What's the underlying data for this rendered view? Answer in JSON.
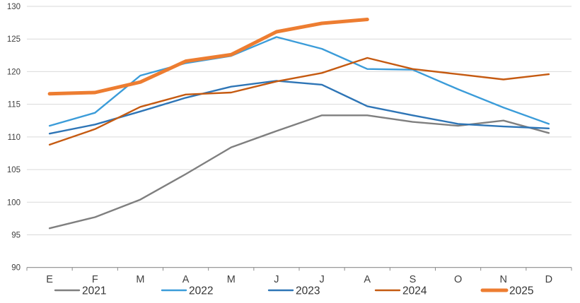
{
  "chart_data": {
    "type": "line",
    "title": "",
    "xlabel": "",
    "ylabel": "",
    "x_categories": [
      "E",
      "F",
      "M",
      "A",
      "M",
      "J",
      "J",
      "A",
      "S",
      "O",
      "N",
      "D"
    ],
    "ylim": [
      90,
      130
    ],
    "y_ticks": [
      90,
      95,
      100,
      105,
      110,
      115,
      120,
      125,
      130
    ],
    "grid": "horizontal",
    "legend_position": "bottom",
    "colors": {
      "gridline": "#D9D9D9",
      "axis": "#8C8C8C",
      "tick_label": "#404040",
      "legend_label": "#333333",
      "background": "#FFFFFF"
    },
    "series": [
      {
        "name": "2021",
        "color": "#7F7F7F",
        "width": 2.4,
        "values": [
          96.0,
          97.7,
          100.4,
          104.3,
          108.4,
          110.9,
          113.3,
          113.3,
          112.3,
          111.7,
          112.5,
          110.6
        ]
      },
      {
        "name": "2022",
        "color": "#3B9CD9",
        "width": 2.4,
        "values": [
          111.7,
          113.7,
          119.4,
          121.3,
          122.4,
          125.3,
          123.5,
          120.4,
          120.3,
          117.3,
          114.5,
          112.0
        ]
      },
      {
        "name": "2023",
        "color": "#2E75B6",
        "width": 2.4,
        "values": [
          110.5,
          111.9,
          113.9,
          116.0,
          117.7,
          118.6,
          118.0,
          114.7,
          113.3,
          112.0,
          111.6,
          111.3
        ]
      },
      {
        "name": "2024",
        "color": "#C55A11",
        "width": 2.4,
        "values": [
          108.8,
          111.2,
          114.6,
          116.5,
          116.8,
          118.5,
          119.8,
          122.1,
          120.4,
          119.6,
          118.8,
          119.6
        ]
      },
      {
        "name": "2025",
        "color": "#ED7D31",
        "width": 5,
        "values": [
          116.6,
          116.8,
          118.4,
          121.6,
          122.6,
          126.1,
          127.4,
          128.0,
          null,
          null,
          null,
          null
        ]
      }
    ]
  }
}
